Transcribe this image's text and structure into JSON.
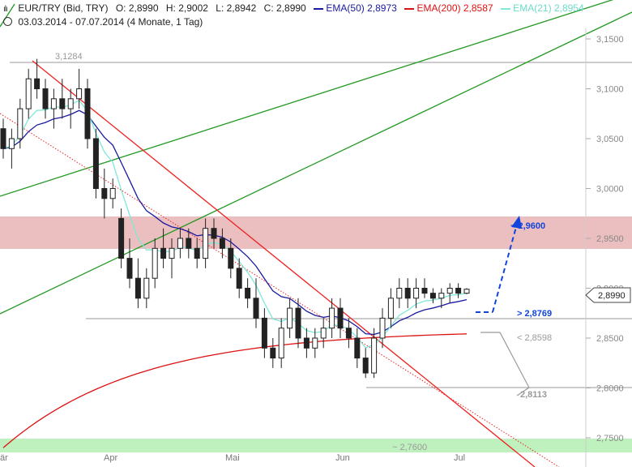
{
  "header": {
    "symbol": "EUR/TRY (Bid, TRY)",
    "open": "O: 2,8990",
    "high": "H: 2,9002",
    "low": "L: 2,8942",
    "close": "C: 2,8990",
    "ema50_label": "EMA(50)",
    "ema50_value": "2,8973",
    "ema200_label": "EMA(200)",
    "ema200_value": "2,8587",
    "ema21_label": "EMA(21)",
    "ema21_value": "2,8954",
    "range": "03.03.2014 - 07.07.2014 (4 Monate, 1 Tag)"
  },
  "colors": {
    "ema50": "#1a1aa0",
    "ema200": "#dd1111",
    "ema21": "#7fe8d8",
    "trend_green": "#229922",
    "trend_red": "#ee2222",
    "zone_red": "#e8b4b4",
    "zone_green": "#b8f0b8",
    "projection": "#1144dd",
    "candle": "#222222"
  },
  "chart_data": {
    "type": "candlestick",
    "x_labels": [
      "är",
      "Apr",
      "Mai",
      "Jun",
      "Jul"
    ],
    "y_ticks": [
      "2,7500",
      "2,8000",
      "2,8500",
      "2,9000",
      "2,9500",
      "3,0000",
      "3,0500",
      "3,1000",
      "3,1500"
    ],
    "ylim": [
      2.745,
      3.165
    ],
    "levels": [
      {
        "label": "3,1284",
        "value": 3.1284
      },
      {
        "label": "> 2,8769",
        "value": 2.8769
      },
      {
        "label": "< 2,8598",
        "value": 2.8598
      },
      {
        "label": "2,8113",
        "value": 2.8113
      },
      {
        "label": "~ 2,7600",
        "value": 2.76
      }
    ],
    "zones": [
      {
        "name": "resistance",
        "from": 2.942,
        "to": 2.973
      },
      {
        "name": "support",
        "from": 2.752,
        "to": 2.767
      }
    ],
    "target": {
      "label": "~ 2,9600",
      "value": 2.96
    },
    "last_price": "2,8990",
    "ohlc": [
      [
        3.06,
        3.07,
        3.03,
        3.04
      ],
      [
        3.04,
        3.06,
        3.02,
        3.05
      ],
      [
        3.05,
        3.09,
        3.04,
        3.08
      ],
      [
        3.08,
        3.12,
        3.07,
        3.11
      ],
      [
        3.11,
        3.13,
        3.09,
        3.1
      ],
      [
        3.1,
        3.11,
        3.07,
        3.08
      ],
      [
        3.08,
        3.1,
        3.06,
        3.09
      ],
      [
        3.09,
        3.11,
        3.07,
        3.08
      ],
      [
        3.08,
        3.1,
        3.06,
        3.09
      ],
      [
        3.09,
        3.12,
        3.08,
        3.1
      ],
      [
        3.1,
        3.11,
        3.04,
        3.05
      ],
      [
        3.05,
        3.06,
        2.99,
        3.0
      ],
      [
        3.0,
        3.02,
        2.97,
        2.99
      ],
      [
        2.99,
        3.01,
        2.98,
        3.0
      ],
      [
        2.97,
        2.98,
        2.92,
        2.93
      ],
      [
        2.93,
        2.95,
        2.9,
        2.91
      ],
      [
        2.91,
        2.93,
        2.88,
        2.89
      ],
      [
        2.89,
        2.92,
        2.88,
        2.91
      ],
      [
        2.91,
        2.95,
        2.9,
        2.94
      ],
      [
        2.94,
        2.96,
        2.92,
        2.93
      ],
      [
        2.93,
        2.95,
        2.91,
        2.94
      ],
      [
        2.94,
        2.96,
        2.93,
        2.95
      ],
      [
        2.95,
        2.96,
        2.93,
        2.94
      ],
      [
        2.94,
        2.95,
        2.92,
        2.93
      ],
      [
        2.93,
        2.97,
        2.92,
        2.96
      ],
      [
        2.96,
        2.97,
        2.94,
        2.95
      ],
      [
        2.95,
        2.96,
        2.93,
        2.94
      ],
      [
        2.94,
        2.95,
        2.91,
        2.92
      ],
      [
        2.92,
        2.93,
        2.89,
        2.9
      ],
      [
        2.9,
        2.91,
        2.88,
        2.89
      ],
      [
        2.89,
        2.91,
        2.86,
        2.87
      ],
      [
        2.87,
        2.88,
        2.83,
        2.84
      ],
      [
        2.84,
        2.85,
        2.82,
        2.83
      ],
      [
        2.83,
        2.87,
        2.82,
        2.86
      ],
      [
        2.86,
        2.89,
        2.85,
        2.88
      ],
      [
        2.88,
        2.89,
        2.84,
        2.85
      ],
      [
        2.85,
        2.86,
        2.83,
        2.84
      ],
      [
        2.84,
        2.86,
        2.83,
        2.85
      ],
      [
        2.85,
        2.87,
        2.84,
        2.86
      ],
      [
        2.86,
        2.89,
        2.85,
        2.88
      ],
      [
        2.88,
        2.89,
        2.85,
        2.86
      ],
      [
        2.86,
        2.87,
        2.84,
        2.85
      ],
      [
        2.85,
        2.86,
        2.82,
        2.83
      ],
      [
        2.83,
        2.84,
        2.81,
        2.815
      ],
      [
        2.815,
        2.86,
        2.81,
        2.85
      ],
      [
        2.85,
        2.88,
        2.84,
        2.87
      ],
      [
        2.87,
        2.9,
        2.86,
        2.89
      ],
      [
        2.89,
        2.91,
        2.88,
        2.9
      ],
      [
        2.9,
        2.91,
        2.88,
        2.89
      ],
      [
        2.89,
        2.91,
        2.88,
        2.9
      ],
      [
        2.9,
        2.91,
        2.89,
        2.895
      ],
      [
        2.895,
        2.9,
        2.885,
        2.89
      ],
      [
        2.89,
        2.9,
        2.88,
        2.895
      ],
      [
        2.895,
        2.905,
        2.885,
        2.9
      ],
      [
        2.9,
        2.905,
        2.89,
        2.895
      ],
      [
        2.895,
        2.9,
        2.894,
        2.899
      ]
    ]
  }
}
